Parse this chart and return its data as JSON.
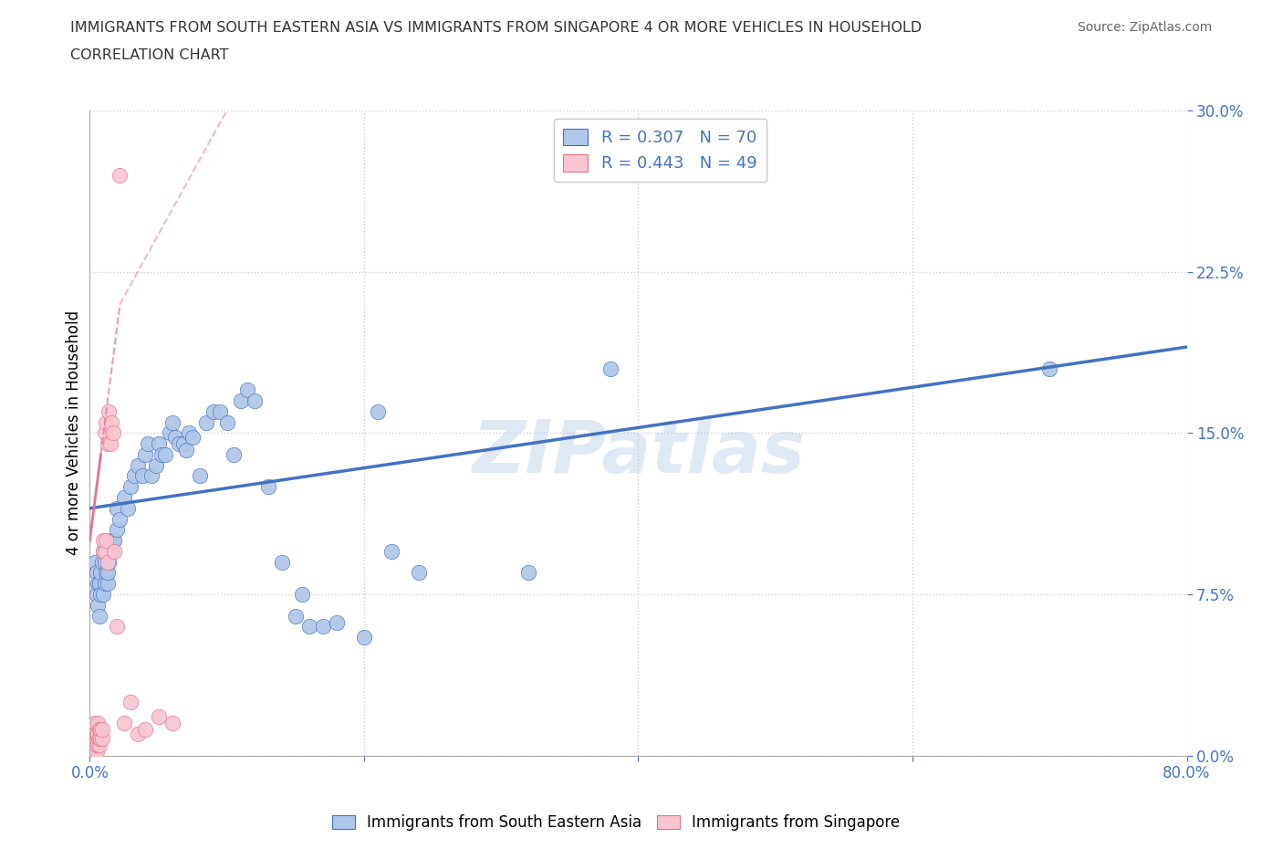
{
  "title_line1": "IMMIGRANTS FROM SOUTH EASTERN ASIA VS IMMIGRANTS FROM SINGAPORE 4 OR MORE VEHICLES IN HOUSEHOLD",
  "title_line2": "CORRELATION CHART",
  "source_text": "Source: ZipAtlas.com",
  "watermark": "ZIPatlas",
  "ylabel": "4 or more Vehicles in Household",
  "xlim": [
    0.0,
    0.8
  ],
  "ylim": [
    0.0,
    0.3
  ],
  "yticks": [
    0.0,
    0.075,
    0.15,
    0.225,
    0.3
  ],
  "yticklabels": [
    "0.0%",
    "7.5%",
    "15.0%",
    "22.5%",
    "30.0%"
  ],
  "xtick_positions": [
    0.0,
    0.2,
    0.4,
    0.6,
    0.8
  ],
  "xticklabels": [
    "0.0%",
    "",
    "",
    "",
    "80.0%"
  ],
  "grid_color": "#cccccc",
  "axis_color": "#4472c4",
  "blue_dot_color": "#aec6e8",
  "pink_dot_color": "#f7c5d0",
  "blue_line_color": "#4472c4",
  "pink_line_color": "#e8708a",
  "R_blue": 0.307,
  "N_blue": 70,
  "R_pink": 0.443,
  "N_pink": 49,
  "legend_label_blue": "Immigrants from South Eastern Asia",
  "legend_label_pink": "Immigrants from Singapore",
  "blue_scatter_x": [
    0.004,
    0.005,
    0.005,
    0.006,
    0.006,
    0.007,
    0.007,
    0.008,
    0.008,
    0.009,
    0.01,
    0.01,
    0.011,
    0.011,
    0.012,
    0.012,
    0.013,
    0.013,
    0.014,
    0.015,
    0.016,
    0.017,
    0.018,
    0.02,
    0.02,
    0.022,
    0.025,
    0.028,
    0.03,
    0.032,
    0.035,
    0.038,
    0.04,
    0.042,
    0.045,
    0.048,
    0.05,
    0.052,
    0.055,
    0.058,
    0.06,
    0.062,
    0.065,
    0.068,
    0.07,
    0.072,
    0.075,
    0.08,
    0.085,
    0.09,
    0.095,
    0.1,
    0.105,
    0.11,
    0.115,
    0.12,
    0.13,
    0.14,
    0.15,
    0.155,
    0.16,
    0.17,
    0.18,
    0.2,
    0.21,
    0.22,
    0.24,
    0.32,
    0.38,
    0.7
  ],
  "blue_scatter_y": [
    0.09,
    0.075,
    0.085,
    0.07,
    0.08,
    0.065,
    0.08,
    0.075,
    0.085,
    0.09,
    0.075,
    0.095,
    0.08,
    0.09,
    0.085,
    0.095,
    0.08,
    0.085,
    0.09,
    0.1,
    0.095,
    0.1,
    0.1,
    0.105,
    0.115,
    0.11,
    0.12,
    0.115,
    0.125,
    0.13,
    0.135,
    0.13,
    0.14,
    0.145,
    0.13,
    0.135,
    0.145,
    0.14,
    0.14,
    0.15,
    0.155,
    0.148,
    0.145,
    0.145,
    0.142,
    0.15,
    0.148,
    0.13,
    0.155,
    0.16,
    0.16,
    0.155,
    0.14,
    0.165,
    0.17,
    0.165,
    0.125,
    0.09,
    0.065,
    0.075,
    0.06,
    0.06,
    0.062,
    0.055,
    0.16,
    0.095,
    0.085,
    0.085,
    0.18,
    0.18
  ],
  "pink_scatter_x": [
    0.001,
    0.001,
    0.002,
    0.002,
    0.002,
    0.003,
    0.003,
    0.003,
    0.003,
    0.004,
    0.004,
    0.004,
    0.004,
    0.004,
    0.005,
    0.005,
    0.005,
    0.005,
    0.006,
    0.006,
    0.006,
    0.007,
    0.007,
    0.007,
    0.008,
    0.008,
    0.009,
    0.009,
    0.01,
    0.01,
    0.011,
    0.011,
    0.012,
    0.012,
    0.013,
    0.013,
    0.014,
    0.015,
    0.016,
    0.017,
    0.018,
    0.02,
    0.022,
    0.025,
    0.03,
    0.035,
    0.04,
    0.05,
    0.06
  ],
  "pink_scatter_y": [
    0.002,
    0.005,
    0.002,
    0.008,
    0.012,
    0.002,
    0.005,
    0.008,
    0.01,
    0.002,
    0.005,
    0.008,
    0.01,
    0.015,
    0.002,
    0.005,
    0.008,
    0.01,
    0.005,
    0.01,
    0.015,
    0.005,
    0.008,
    0.012,
    0.008,
    0.012,
    0.008,
    0.012,
    0.095,
    0.1,
    0.095,
    0.15,
    0.1,
    0.155,
    0.09,
    0.145,
    0.16,
    0.145,
    0.155,
    0.15,
    0.095,
    0.06,
    0.27,
    0.015,
    0.025,
    0.01,
    0.012,
    0.018,
    0.015
  ],
  "blue_regline_x": [
    0.0,
    0.8
  ],
  "blue_regline_y": [
    0.115,
    0.19
  ],
  "pink_regline_x": [
    0.0,
    0.022
  ],
  "pink_regline_y": [
    0.1,
    0.21
  ]
}
